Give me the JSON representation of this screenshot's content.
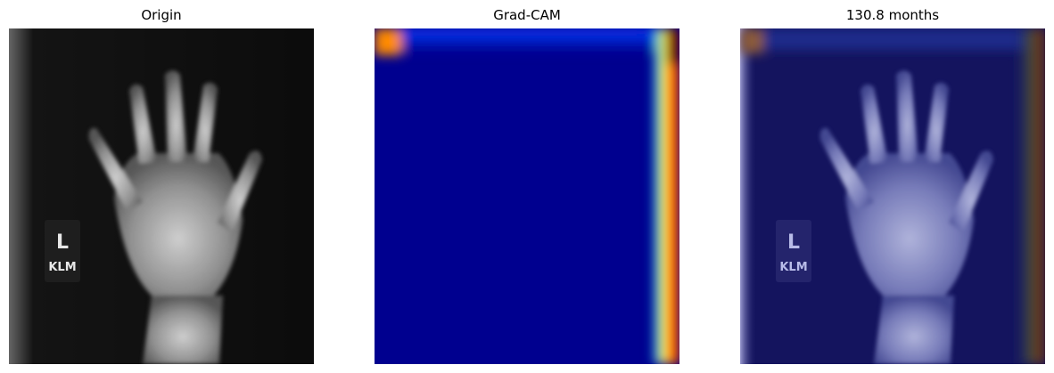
{
  "panels": [
    {
      "title": "Origin",
      "image": "hand-xray",
      "colormap": "gray"
    },
    {
      "title": "Grad-CAM",
      "image": "gradcam-heatmap",
      "colormap": "jet"
    },
    {
      "title": "130.8 months",
      "image": "gradcam-overlay",
      "colormap": "jet-on-gray"
    }
  ],
  "marker": {
    "line1": "L",
    "line2": "KLM"
  },
  "colors": {
    "heat_low": "#00008f",
    "heat_mid": "#0a3dff",
    "heat_high": "#ff4500",
    "heat_max": "#800000",
    "xray_bg": "#0b0b0b"
  }
}
